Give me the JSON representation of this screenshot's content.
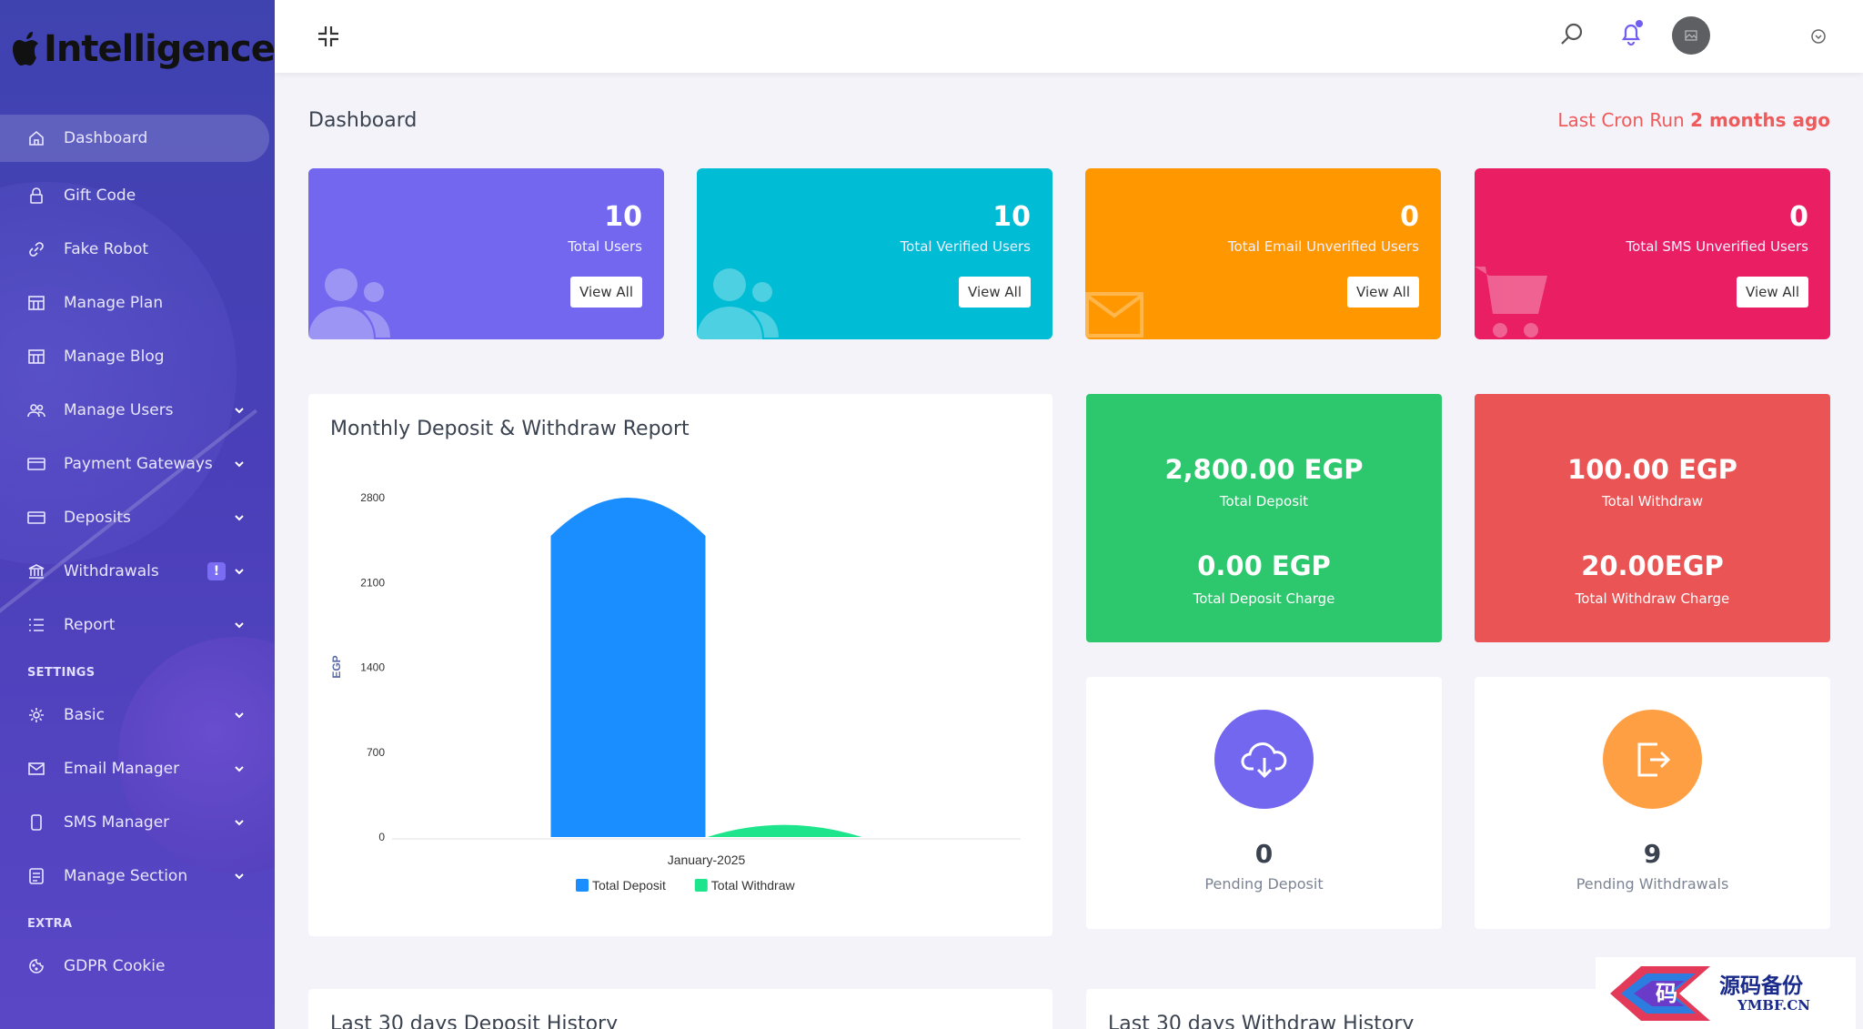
{
  "brand": {
    "name": "Intelligence"
  },
  "sidebar": {
    "items": [
      {
        "label": "Dashboard",
        "icon": "home-icon",
        "active": true
      },
      {
        "label": "Gift Code",
        "icon": "lock-icon"
      },
      {
        "label": "Fake Robot",
        "icon": "link-icon"
      },
      {
        "label": "Manage Plan",
        "icon": "grid-icon"
      },
      {
        "label": "Manage Blog",
        "icon": "grid-icon"
      },
      {
        "label": "Manage Users",
        "icon": "users-icon",
        "expandable": true
      },
      {
        "label": "Payment Gateways",
        "icon": "card-icon",
        "expandable": true
      },
      {
        "label": "Deposits",
        "icon": "card-icon",
        "expandable": true
      },
      {
        "label": "Withdrawals",
        "icon": "bank-icon",
        "expandable": true,
        "alert": "!"
      },
      {
        "label": "Report",
        "icon": "list-icon",
        "expandable": true
      }
    ],
    "settings_heading": "SETTINGS",
    "settings_items": [
      {
        "label": "Basic",
        "icon": "gear-icon",
        "expandable": true
      },
      {
        "label": "Email Manager",
        "icon": "mail-icon",
        "expandable": true
      },
      {
        "label": "SMS Manager",
        "icon": "phone-icon",
        "expandable": true
      },
      {
        "label": "Manage Section",
        "icon": "doc-icon",
        "expandable": true
      }
    ],
    "extra_heading": "EXTRA",
    "extra_items": [
      {
        "label": "GDPR Cookie",
        "icon": "cookie-icon"
      }
    ]
  },
  "header": {
    "page_title": "Dashboard",
    "cron_prefix": "Last Cron Run ",
    "cron_value": "2 months ago"
  },
  "stats": [
    {
      "value": "10",
      "label": "Total Users",
      "button": "View All",
      "color": "#7367f0",
      "icon": "users-icon"
    },
    {
      "value": "10",
      "label": "Total Verified Users",
      "button": "View All",
      "color": "#00bcd4",
      "icon": "users-icon"
    },
    {
      "value": "0",
      "label": "Total Email Unverified Users",
      "button": "View All",
      "color": "#ff9800",
      "icon": "envelope-icon"
    },
    {
      "value": "0",
      "label": "Total SMS Unverified Users",
      "button": "View All",
      "color": "#e91e63",
      "icon": "cart-icon"
    }
  ],
  "chart_title": "Monthly Deposit & Withdraw Report",
  "chart_data": {
    "type": "bar",
    "categories": [
      "January-2025"
    ],
    "series": [
      {
        "name": "Total Deposit",
        "values": [
          2800
        ],
        "color": "#1b8eff"
      },
      {
        "name": "Total Withdraw",
        "values": [
          100
        ],
        "color": "#1ee58c"
      }
    ],
    "ylabel": "EGP",
    "yticks": [
      0,
      700,
      1400,
      2100,
      2800
    ],
    "ylim": [
      0,
      2800
    ],
    "legend": "bottom"
  },
  "deposit_box": {
    "color": "#2dc76d",
    "total": "2,800.00 EGP",
    "total_label": "Total Deposit",
    "charge": "0.00 EGP",
    "charge_label": "Total Deposit Charge"
  },
  "withdraw_box": {
    "color": "#ea5455",
    "total": "100.00 EGP",
    "total_label": "Total Withdraw",
    "charge": "20.00EGP",
    "charge_label": "Total Withdraw Charge"
  },
  "pending": [
    {
      "value": "0",
      "label": "Pending Deposit",
      "color": "#7367f0",
      "icon": "cloud-download-icon"
    },
    {
      "value": "9",
      "label": "Pending Withdrawals",
      "color": "#ff9f43",
      "icon": "exit-icon"
    }
  ],
  "history": {
    "deposit_title": "Last 30 days Deposit History",
    "withdraw_title": "Last 30 days Withdraw History"
  },
  "watermark": {
    "cn": "源码备份",
    "en": "YMBF.CN"
  }
}
